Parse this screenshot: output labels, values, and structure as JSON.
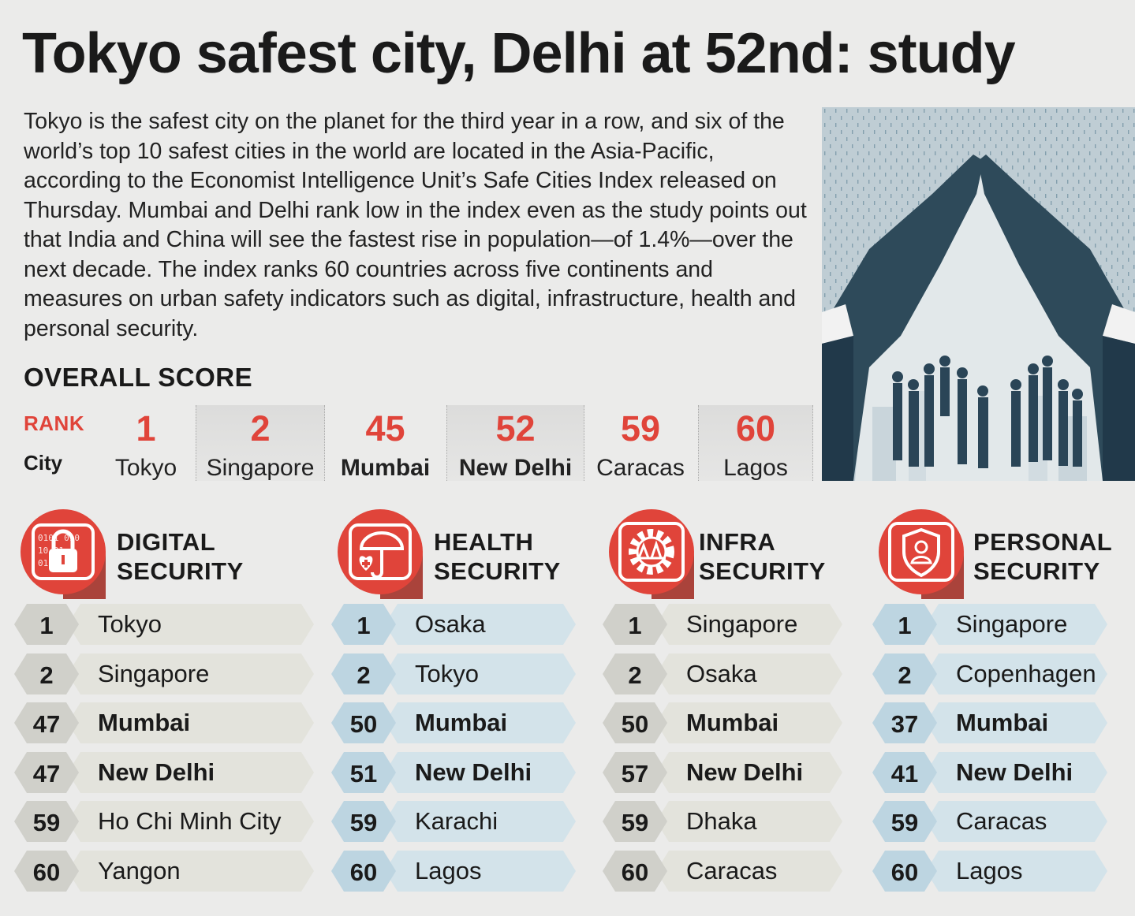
{
  "headline": "Tokyo safest city, Delhi at 52nd: study",
  "intro": "Tokyo is the safest city on the planet for the third year in a row, and six of the world’s top 10 safest cities in the world are located in the Asia-Pacific, according to the Economist Intelligence Unit’s Safe Cities Index released on Thursday. Mumbai and Delhi rank low in the index even as the study points out that India and China will see the fastest rise in population—of 1.4%—over the next decade. The index ranks 60 countries across five continents and measures on urban safety indicators such as digital, infrastructure, health and personal security.",
  "overall": {
    "title": "OVERALL SCORE",
    "rank_label": "RANK",
    "city_label": "City",
    "items": [
      {
        "rank": "1",
        "city": "Tokyo"
      },
      {
        "rank": "2",
        "city": "Singapore"
      },
      {
        "rank": "45",
        "city": "Mumbai"
      },
      {
        "rank": "52",
        "city": "New Delhi"
      },
      {
        "rank": "59",
        "city": "Caracas"
      },
      {
        "rank": "60",
        "city": "Lagos"
      }
    ]
  },
  "panels": [
    {
      "title_line1": "DIGITAL",
      "title_line2": "SECURITY",
      "icon": "padlock-binary-icon",
      "rows": [
        {
          "rank": "1",
          "city": "Tokyo"
        },
        {
          "rank": "2",
          "city": "Singapore"
        },
        {
          "rank": "47",
          "city": "Mumbai"
        },
        {
          "rank": "47",
          "city": "New Delhi"
        },
        {
          "rank": "59",
          "city": "Ho Chi Minh City"
        },
        {
          "rank": "60",
          "city": "Yangon"
        }
      ]
    },
    {
      "title_line1": "HEALTH",
      "title_line2": "SECURITY",
      "icon": "umbrella-heart-icon",
      "rows": [
        {
          "rank": "1",
          "city": "Osaka"
        },
        {
          "rank": "2",
          "city": "Tokyo"
        },
        {
          "rank": "50",
          "city": "Mumbai"
        },
        {
          "rank": "51",
          "city": "New Delhi"
        },
        {
          "rank": "59",
          "city": "Karachi"
        },
        {
          "rank": "60",
          "city": "Lagos"
        }
      ]
    },
    {
      "title_line1": "INFRA",
      "title_line2": "SECURITY",
      "icon": "gear-bridge-icon",
      "rows": [
        {
          "rank": "1",
          "city": "Singapore"
        },
        {
          "rank": "2",
          "city": "Osaka"
        },
        {
          "rank": "50",
          "city": "Mumbai"
        },
        {
          "rank": "57",
          "city": "New Delhi"
        },
        {
          "rank": "59",
          "city": "Dhaka"
        },
        {
          "rank": "60",
          "city": "Caracas"
        }
      ]
    },
    {
      "title_line1": "PERSONAL",
      "title_line2": "SECURITY",
      "icon": "shield-person-icon",
      "rows": [
        {
          "rank": "1",
          "city": "Singapore"
        },
        {
          "rank": "2",
          "city": "Copenhagen"
        },
        {
          "rank": "37",
          "city": "Mumbai"
        },
        {
          "rank": "41",
          "city": "New Delhi"
        },
        {
          "rank": "59",
          "city": "Caracas"
        },
        {
          "rank": "60",
          "city": "Lagos"
        }
      ]
    }
  ],
  "colors": {
    "accent": "#e0443a",
    "background": "#ebebea",
    "grey_row": "#e3e3dc",
    "blue_row": "#d3e3ea",
    "grey_badge": "#d0d0ca",
    "blue_badge": "#bdd5e1"
  },
  "chart_data": {
    "type": "table",
    "title": "Tokyo safest city, Delhi at 52nd: study",
    "overall_score": {
      "rank": [
        1,
        2,
        45,
        52,
        59,
        60
      ],
      "city": [
        "Tokyo",
        "Singapore",
        "Mumbai",
        "New Delhi",
        "Caracas",
        "Lagos"
      ]
    },
    "categories": [
      "DIGITAL SECURITY",
      "HEALTH SECURITY",
      "INFRA SECURITY",
      "PERSONAL SECURITY"
    ],
    "series": [
      {
        "name": "DIGITAL SECURITY",
        "rank": [
          1,
          2,
          47,
          47,
          59,
          60
        ],
        "city": [
          "Tokyo",
          "Singapore",
          "Mumbai",
          "New Delhi",
          "Ho Chi Minh City",
          "Yangon"
        ]
      },
      {
        "name": "HEALTH SECURITY",
        "rank": [
          1,
          2,
          50,
          51,
          59,
          60
        ],
        "city": [
          "Osaka",
          "Tokyo",
          "Mumbai",
          "New Delhi",
          "Karachi",
          "Lagos"
        ]
      },
      {
        "name": "INFRA SECURITY",
        "rank": [
          1,
          2,
          50,
          57,
          59,
          60
        ],
        "city": [
          "Singapore",
          "Osaka",
          "Mumbai",
          "New Delhi",
          "Dhaka",
          "Caracas"
        ]
      },
      {
        "name": "PERSONAL SECURITY",
        "rank": [
          1,
          2,
          37,
          41,
          59,
          60
        ],
        "city": [
          "Singapore",
          "Copenhagen",
          "Mumbai",
          "New Delhi",
          "Caracas",
          "Lagos"
        ]
      }
    ]
  }
}
